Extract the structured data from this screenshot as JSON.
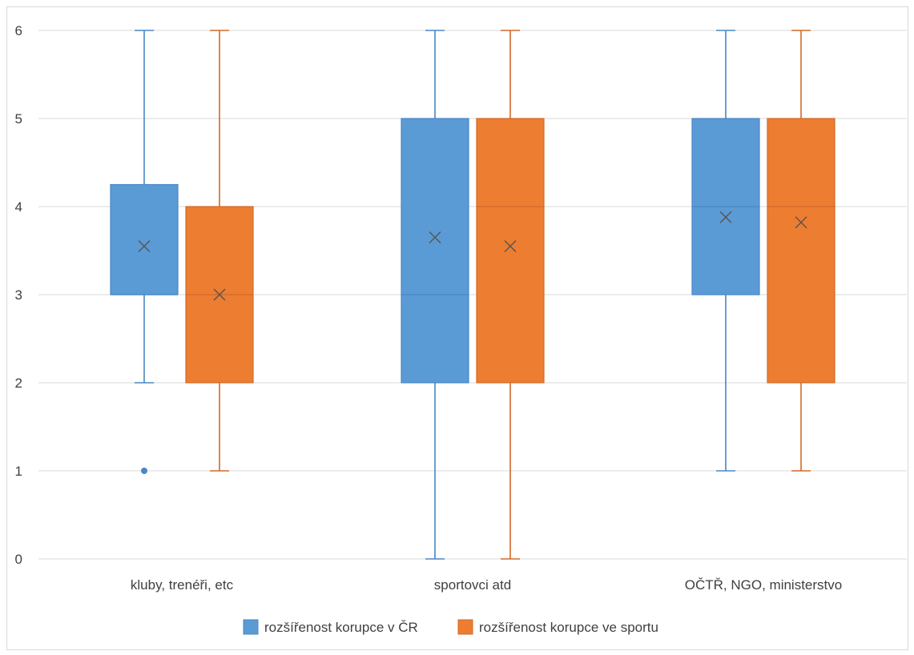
{
  "chart_data": {
    "type": "boxplot",
    "title": "",
    "xlabel": "",
    "ylabel": "",
    "ylim": [
      0,
      6
    ],
    "yticks": [
      "0",
      "1",
      "2",
      "3",
      "4",
      "5",
      "6"
    ],
    "grid": true,
    "legend_position": "bottom",
    "categories": [
      "kluby, trenéři, etc",
      "sportovci atd",
      "OČTŘ, NGO, ministerstvo"
    ],
    "series": [
      {
        "name": "rozšířenost korupce v ČR",
        "color": "#5B9BD5",
        "whisker_color": "#4A86C5",
        "boxes": [
          {
            "min": 2,
            "q1": 3,
            "median": 3,
            "q3": 4.25,
            "max": 6,
            "mean": 3.55,
            "outliers": [
              1
            ]
          },
          {
            "min": 0,
            "q1": 2,
            "median": 3,
            "q3": 5,
            "max": 6,
            "mean": 3.65,
            "outliers": []
          },
          {
            "min": 1,
            "q1": 3,
            "median": 4,
            "q3": 5,
            "max": 6,
            "mean": 3.88,
            "outliers": []
          }
        ]
      },
      {
        "name": "rozšířenost korupce ve sportu",
        "color": "#ED7D31",
        "whisker_color": "#D2692A",
        "boxes": [
          {
            "min": 1,
            "q1": 2,
            "median": 3,
            "q3": 4,
            "max": 6,
            "mean": 3.0,
            "outliers": []
          },
          {
            "min": 0,
            "q1": 2,
            "median": 4,
            "q3": 5,
            "max": 6,
            "mean": 3.55,
            "outliers": []
          },
          {
            "min": 1,
            "q1": 2,
            "median": 4,
            "q3": 5,
            "max": 6,
            "mean": 3.82,
            "outliers": []
          }
        ]
      }
    ]
  }
}
